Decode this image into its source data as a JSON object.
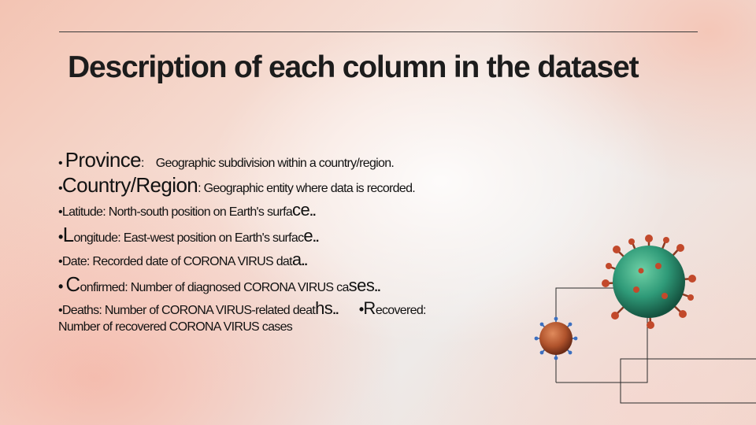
{
  "slide": {
    "title": "Description of each column in the dataset",
    "items": [
      {
        "bullet": "•",
        "term": "Province",
        "colon": ":",
        "desc": "Geographic subdivision within a country/region."
      },
      {
        "bullet": "•",
        "term": "Country/Region",
        "desc": ": Geographic entity where data is recorded."
      },
      {
        "bullet": "•",
        "text": "Latitude: North-south position on Earth's surfa",
        "tail": "ce",
        "end": ".."
      },
      {
        "bullet": "•",
        "initial": "L",
        "text": "ongitude: East-west position on Earth's surfac",
        "tail": "e",
        "end": ".."
      },
      {
        "bullet": "•",
        "text": "Date: Recorded date of CORONA VIRUS dat",
        "tail": "a",
        "end": ".."
      },
      {
        "bullet": "•",
        "initial": "C",
        "text": "onfirmed: Number of diagnosed CORONA VIRUS ca",
        "tail": "ses",
        "end": ".."
      },
      {
        "bullet": "•",
        "text": "Deaths: Number of CORONA VIRUS-related deat",
        "tail": "hs",
        "end": ".."
      },
      {
        "bullet": "•",
        "initial": "R",
        "text": "ecovered:",
        "continuation": "Number of recovered CORONA VIRUS cases"
      }
    ]
  },
  "colors": {
    "title": "#1c1c1c",
    "text": "#121212",
    "rule": "#3a3a3a",
    "virus_big": "#2f9a78",
    "virus_small": "#b0532c",
    "spike": "#b9462a"
  },
  "decorations": {
    "images": [
      "coronavirus-particle-large",
      "coronavirus-particle-small"
    ]
  }
}
